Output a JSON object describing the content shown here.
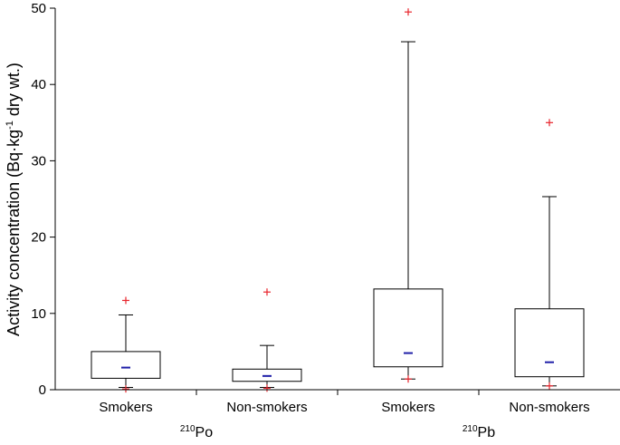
{
  "chart_data": {
    "type": "box",
    "ylabel": "Activity concentration (Bq·kg",
    "ylabel_sup": "-1",
    "ylabel_end": " dry wt.)",
    "ylim": [
      0,
      50
    ],
    "yticks": [
      "0",
      "10",
      "20",
      "30",
      "40",
      "50"
    ],
    "ytick_values": [
      0,
      10,
      20,
      30,
      40,
      50
    ],
    "grid": false,
    "groups": [
      {
        "isotope_sup": "210",
        "isotope": "Po"
      },
      {
        "isotope_sup": "210",
        "isotope": "Pb"
      }
    ],
    "boxes": [
      {
        "label": "Smokers",
        "group": 0,
        "whisker_low": 0.3,
        "q1": 1.5,
        "median": 2.9,
        "q3": 5.0,
        "whisker_high": 9.8,
        "outliers": [
          11.7,
          0.1
        ]
      },
      {
        "label": "Non-smokers",
        "group": 0,
        "whisker_low": 0.3,
        "q1": 1.1,
        "median": 1.8,
        "q3": 2.7,
        "whisker_high": 5.8,
        "outliers": [
          12.8,
          0.2
        ]
      },
      {
        "label": "Smokers",
        "group": 1,
        "whisker_low": 1.4,
        "q1": 3.0,
        "median": 4.8,
        "q3": 13.2,
        "whisker_high": 45.6,
        "outliers": [
          49.5,
          1.4
        ]
      },
      {
        "label": "Non-smokers",
        "group": 1,
        "whisker_low": 0.5,
        "q1": 1.7,
        "median": 3.6,
        "q3": 10.6,
        "whisker_high": 25.3,
        "outliers": [
          35.0,
          0.5
        ]
      }
    ],
    "colors": {
      "median": "#1f1fa8",
      "outlier": "#e8242c",
      "stroke": "#000000"
    }
  }
}
